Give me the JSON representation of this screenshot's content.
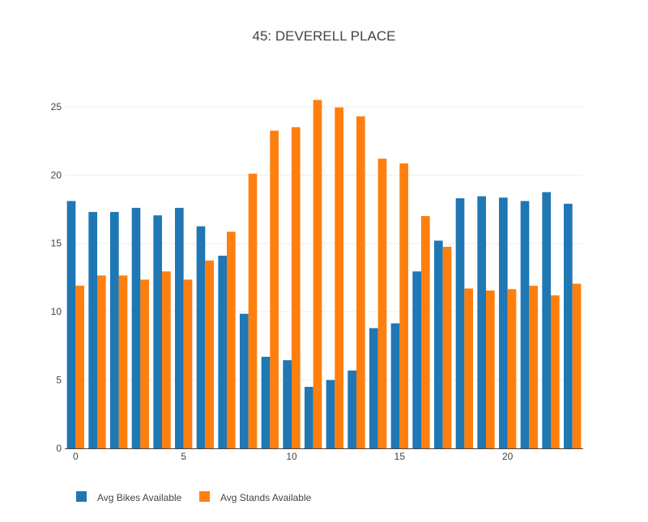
{
  "chart_data": {
    "type": "bar",
    "title": "45: DEVERELL PLACE",
    "xlabel": "",
    "ylabel": "",
    "x": [
      0,
      1,
      2,
      3,
      4,
      5,
      6,
      7,
      8,
      9,
      10,
      11,
      12,
      13,
      14,
      15,
      16,
      17,
      18,
      19,
      20,
      21,
      22,
      23
    ],
    "x_ticks": [
      0,
      5,
      10,
      15,
      20
    ],
    "y_ticks": [
      0,
      5,
      10,
      15,
      20,
      25
    ],
    "xlim": [
      -0.5,
      23.5
    ],
    "ylim": [
      0,
      27.6
    ],
    "grid": true,
    "legend_position": "bottom-left",
    "series": [
      {
        "name": "Avg Bikes Available",
        "color": "#1f77b4",
        "values": [
          18.1,
          17.3,
          17.3,
          17.6,
          17.05,
          17.6,
          16.25,
          14.1,
          9.85,
          6.7,
          6.45,
          4.5,
          5.0,
          5.7,
          8.8,
          9.15,
          12.95,
          15.2,
          18.3,
          18.45,
          18.35,
          18.1,
          18.75,
          17.9
        ]
      },
      {
        "name": "Avg Stands Available",
        "color": "#ff7f0e",
        "values": [
          11.9,
          12.65,
          12.65,
          12.35,
          12.95,
          12.35,
          13.75,
          15.85,
          20.1,
          23.25,
          23.5,
          25.5,
          24.95,
          24.3,
          21.2,
          20.85,
          17.0,
          14.75,
          11.7,
          11.55,
          11.65,
          11.9,
          11.2,
          12.05
        ]
      }
    ]
  }
}
